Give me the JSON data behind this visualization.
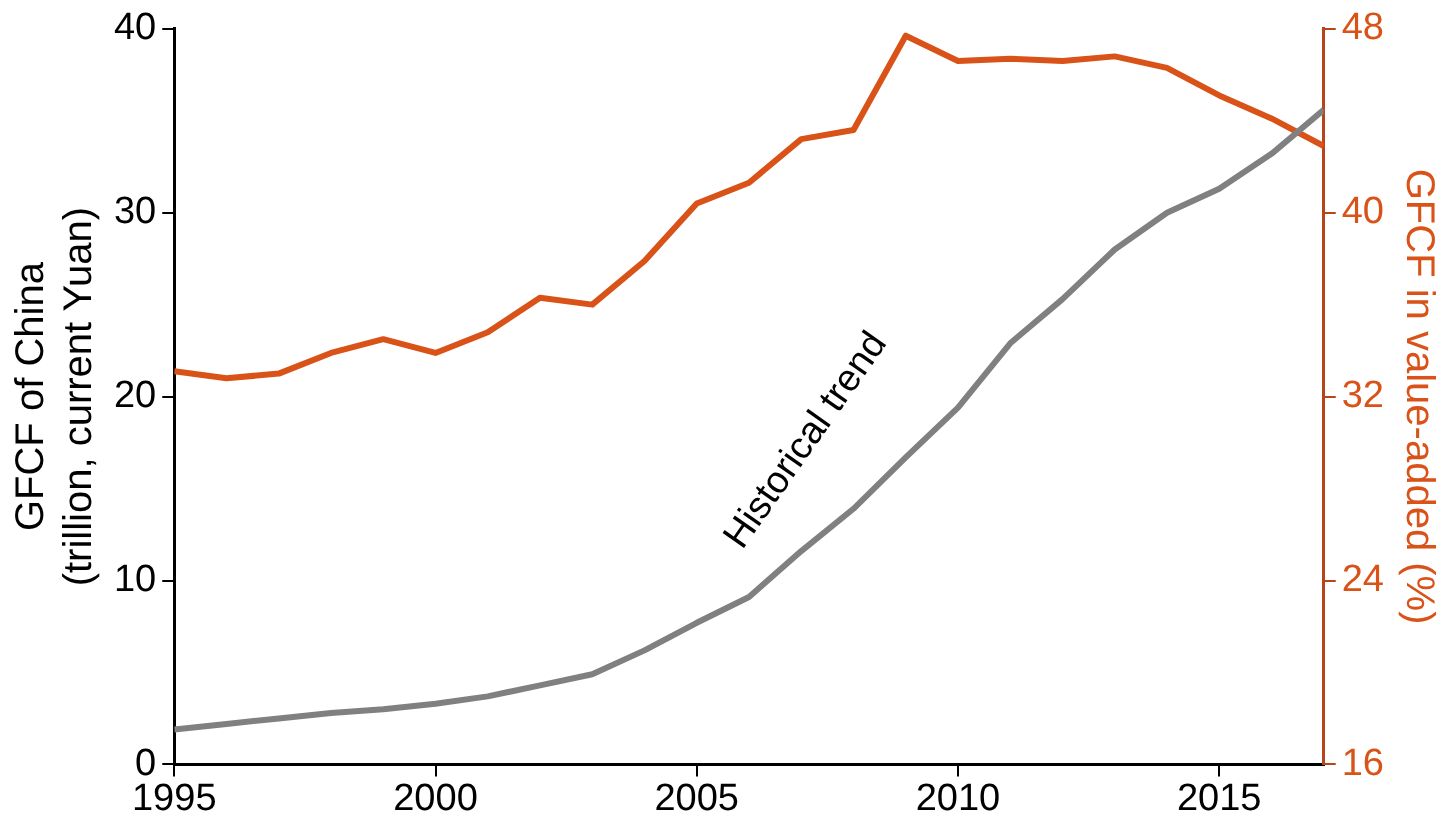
{
  "chart_data": {
    "type": "line",
    "ylabel": "GFCF of China\n(trillion, current Yuan)",
    "y2label": "GFCF in value-added (%)",
    "x": [
      1995,
      1996,
      1997,
      1998,
      1999,
      2000,
      2001,
      2002,
      2003,
      2004,
      2005,
      2006,
      2007,
      2008,
      2009,
      2010,
      2011,
      2012,
      2013,
      2014,
      2015,
      2016,
      2017
    ],
    "series": [
      {
        "color": "#808080",
        "values": [
          1.9,
          2.2,
          2.5,
          2.8,
          3.0,
          3.3,
          3.7,
          4.3,
          4.9,
          6.2,
          7.7,
          9.1,
          11.6,
          13.9,
          16.7,
          19.4,
          22.9,
          25.3,
          28.0,
          30.0,
          31.3,
          33.2,
          35.6
        ]
      },
      {
        "color": "#d95319",
        "axis": "y2",
        "values": [
          33.1,
          32.8,
          33.0,
          33.9,
          34.5,
          33.9,
          34.8,
          36.3,
          36.0,
          37.9,
          40.4,
          41.3,
          43.2,
          43.6,
          47.7,
          46.6,
          46.7,
          46.6,
          46.8,
          46.3,
          45.1,
          44.1,
          42.9
        ]
      }
    ],
    "xlim": [
      1995,
      2017
    ],
    "xticks": [
      1995,
      2000,
      2005,
      2010,
      2015
    ],
    "ylim": [
      0,
      40
    ],
    "yticks": [
      0,
      10,
      20,
      30,
      40
    ],
    "y2lim": [
      16,
      48
    ],
    "y2ticks": [
      16,
      24,
      32,
      40,
      48
    ],
    "annotations": [
      "Historical trend"
    ],
    "grid": false,
    "legend": false,
    "marker": "none",
    "line_style": "solid"
  }
}
